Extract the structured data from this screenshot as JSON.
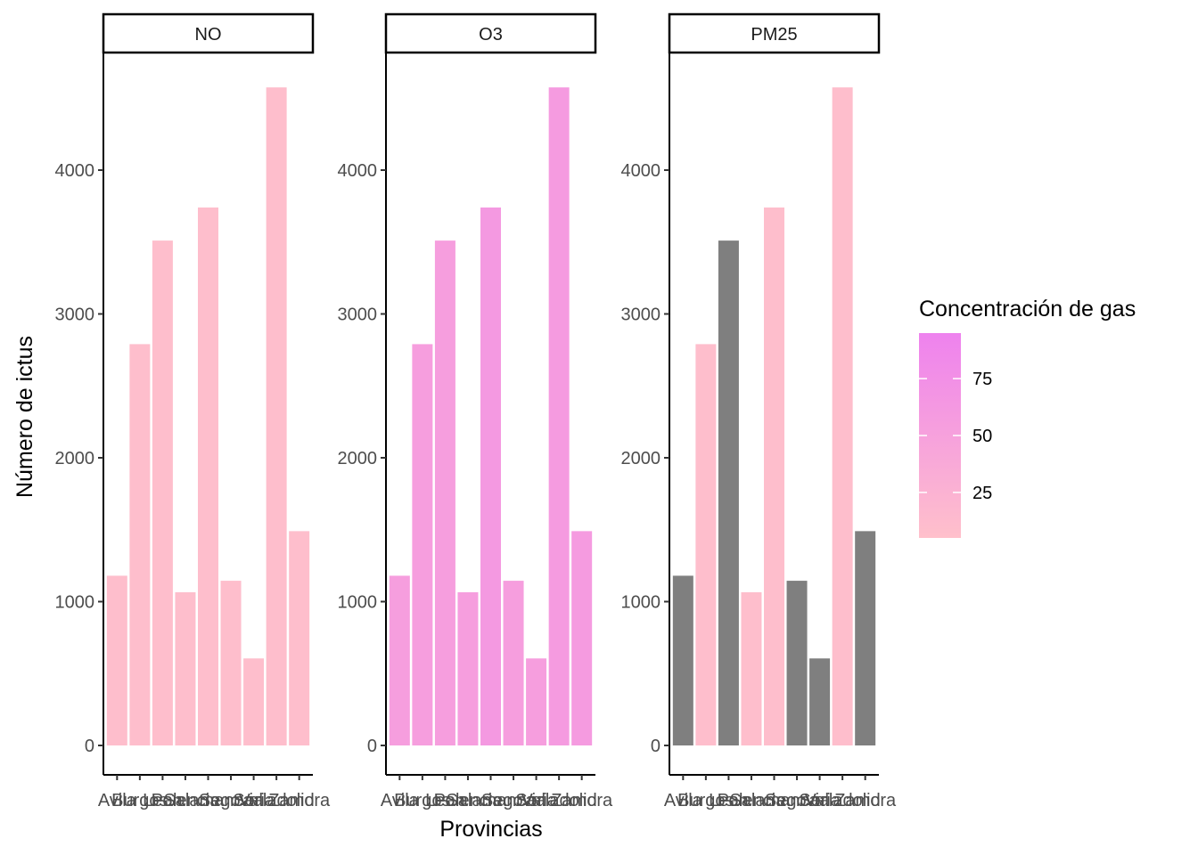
{
  "chart_data": {
    "type": "bar",
    "xlabel": "Provincias",
    "ylabel": "Número de ictus",
    "ylim": [
      0,
      4800
    ],
    "yticks": [
      0,
      1000,
      2000,
      3000,
      4000
    ],
    "grid": false,
    "categories": [
      "Avila",
      "Burgos",
      "Leon",
      "Palencia",
      "Salamanca",
      "Segovia",
      "Soria",
      "Valladolid",
      "Zamora"
    ],
    "values": [
      1180,
      2790,
      3510,
      1065,
      3740,
      1145,
      605,
      4575,
      1490
    ],
    "facets": [
      {
        "label": "NO",
        "concentration": [
          8,
          8,
          8,
          8,
          8,
          8,
          8,
          8,
          8
        ]
      },
      {
        "label": "O3",
        "concentration": [
          55,
          55,
          55,
          55,
          62,
          55,
          55,
          58,
          58
        ]
      },
      {
        "label": "PM25",
        "concentration": [
          null,
          8,
          null,
          8,
          8,
          null,
          null,
          8,
          null
        ]
      }
    ],
    "legend": {
      "title": "Concentración de gas",
      "position": "right",
      "ticks": [
        25,
        50,
        75
      ],
      "range": [
        5,
        95
      ],
      "low_color": "#FFC0CB",
      "high_color": "#EE82EE",
      "na_color": "#7F7F7F"
    }
  }
}
